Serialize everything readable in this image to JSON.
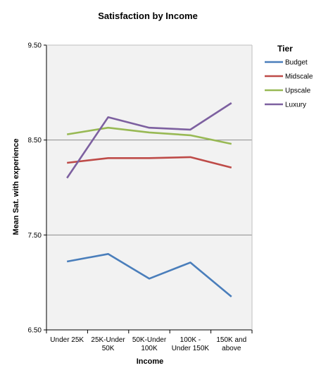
{
  "chart_data": {
    "type": "line",
    "title": "Satisfaction by Income",
    "xlabel": "Income",
    "ylabel": "Mean Sat. with experience",
    "ylim": [
      6.5,
      9.5
    ],
    "yticks": [
      "6.50",
      "7.50",
      "8.50",
      "9.50"
    ],
    "categories": [
      [
        "Under  25K"
      ],
      [
        "25K-Under",
        "50K"
      ],
      [
        "50K-Under",
        "100K"
      ],
      [
        "100K -",
        "Under  150K"
      ],
      [
        "150K and",
        "above"
      ]
    ],
    "series": [
      {
        "name": "Budget",
        "color": "#4A7EBB",
        "values": [
          7.22,
          7.3,
          7.04,
          7.21,
          6.85
        ]
      },
      {
        "name": "Midscale",
        "color": "#BE4B48",
        "values": [
          8.26,
          8.31,
          8.31,
          8.32,
          8.21
        ]
      },
      {
        "name": "Upscale",
        "color": "#98B954",
        "values": [
          8.56,
          8.63,
          8.58,
          8.55,
          8.46
        ]
      },
      {
        "name": "Luxury",
        "color": "#7D60A0",
        "values": [
          8.1,
          8.74,
          8.63,
          8.61,
          8.89
        ]
      }
    ],
    "legend": {
      "title": "Tier",
      "position": "right"
    },
    "grid": true,
    "plot_background": "#F2F2F2"
  }
}
